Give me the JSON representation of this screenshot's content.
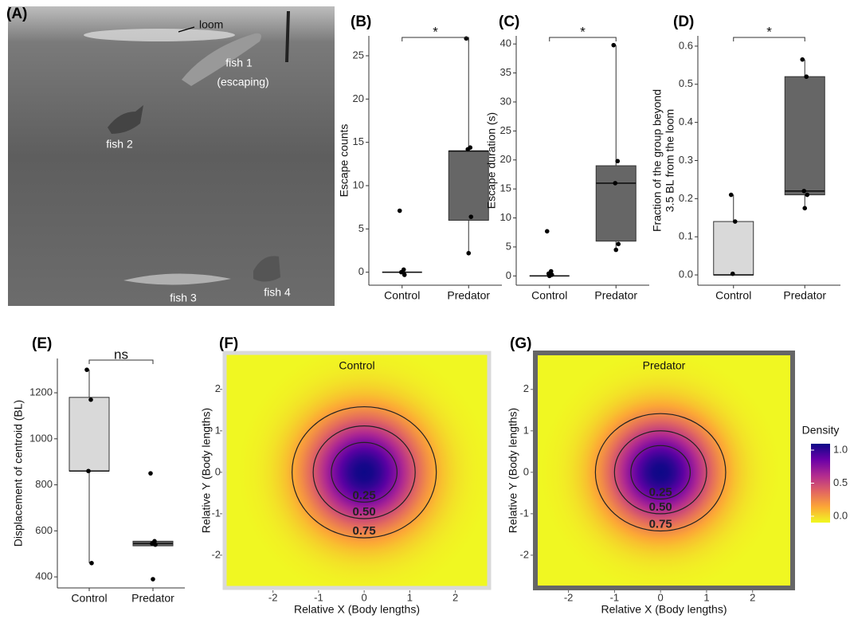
{
  "chart_data": [
    {
      "type": "image",
      "panel": "(A)",
      "annotations": [
        "loom",
        "fish 1",
        "(escaping)",
        "fish 2",
        "fish 3",
        "fish 4"
      ]
    },
    {
      "type": "box",
      "panel": "(B)",
      "y_label": "Escape counts",
      "categories": [
        "Control",
        "Predator"
      ],
      "colors": [
        "#d9d9d9",
        "#666666"
      ],
      "ylim": [
        -1.5,
        27.3
      ],
      "yticks": [
        0,
        5,
        10,
        15,
        20,
        25
      ],
      "significance": "*",
      "boxes": [
        {
          "whisker_low": 0,
          "q1": 0,
          "median": 0,
          "q3": 0,
          "whisker_high": 0,
          "points": [
            7.1,
            0.3,
            0,
            -0.3
          ]
        },
        {
          "whisker_low": 2.2,
          "q1": 6,
          "median": 14,
          "q3": 14,
          "whisker_high": 27,
          "points": [
            27,
            14.4,
            14.2,
            6.4,
            2.2
          ]
        }
      ]
    },
    {
      "type": "box",
      "panel": "(C)",
      "y_label": "Escape duration (s)",
      "categories": [
        "Control",
        "Predator"
      ],
      "colors": [
        "#d9d9d9",
        "#666666"
      ],
      "ylim": [
        -1.6,
        41.4
      ],
      "yticks": [
        0,
        5,
        10,
        15,
        20,
        25,
        30,
        35,
        40
      ],
      "significance": "*",
      "boxes": [
        {
          "whisker_low": 0,
          "q1": 0,
          "median": 0,
          "q3": 0,
          "whisker_high": 0,
          "points": [
            7.7,
            0.8,
            0.4,
            0.2,
            0
          ]
        },
        {
          "whisker_low": 4.5,
          "q1": 6,
          "median": 16,
          "q3": 19,
          "whisker_high": 39.8,
          "points": [
            39.8,
            19.8,
            16,
            5.5,
            4.5
          ]
        }
      ]
    },
    {
      "type": "box",
      "panel": "(D)",
      "y_label": [
        "Fraction of the group beyond",
        "3.5 BL from the loom"
      ],
      "categories": [
        "Control",
        "Predator"
      ],
      "colors": [
        "#d9d9d9",
        "#666666"
      ],
      "ylim": [
        -0.027,
        0.627
      ],
      "yticks": [
        {
          "value": 0,
          "label": "0.0"
        },
        0.1,
        0.2,
        0.3,
        0.4,
        0.5,
        0.6
      ],
      "significance": "*",
      "boxes": [
        {
          "whisker_low": 0,
          "q1": 0,
          "median": 0,
          "q3": 0.14,
          "whisker_high": 0.21,
          "points": [
            0.21,
            0.14,
            0.003
          ]
        },
        {
          "whisker_low": 0.175,
          "q1": 0.21,
          "median": 0.22,
          "q3": 0.52,
          "whisker_high": 0.565,
          "points": [
            0.565,
            0.52,
            0.22,
            0.21,
            0.175
          ]
        }
      ]
    },
    {
      "type": "box",
      "panel": "(E)",
      "y_label": "Displacement of centroid (BL)",
      "categories": [
        "Control",
        "Predator"
      ],
      "colors": [
        "#d9d9d9",
        "#666666"
      ],
      "ylim": [
        352,
        1349
      ],
      "yticks": [
        400,
        600,
        800,
        1000,
        1200
      ],
      "significance": "ns",
      "boxes": [
        {
          "whisker_low": 460,
          "q1": 860,
          "median": 860,
          "q3": 1180,
          "whisker_high": 1300,
          "points": [
            1300,
            1170,
            860,
            460
          ]
        },
        {
          "whisker_low": 535,
          "q1": 535,
          "median": 545,
          "q3": 555,
          "whisker_high": 555,
          "points": [
            850,
            555,
            545,
            540,
            390
          ]
        }
      ]
    },
    {
      "type": "heatmap",
      "panel": "(F)",
      "title": "Control",
      "x_label": "Relative X (Body lengths)",
      "y_label": "Relative Y (Body lengths)",
      "xlim": [
        -3.06,
        2.74
      ],
      "ylim": [
        -2.79,
        2.88
      ],
      "xticks": [
        -2,
        -1,
        0,
        1,
        2
      ],
      "yticks": [
        -2,
        -1,
        0,
        1,
        2
      ],
      "frame_color": "#d9d9d9",
      "colormap": [
        "#f0f921",
        "#fca636",
        "#e16462",
        "#b12a90",
        "#6a00a8",
        "#0d0887"
      ],
      "contour_levels": [
        {
          "value": 0.25,
          "label": "0.25"
        },
        {
          "value": 0.5,
          "label": "0.50"
        },
        {
          "value": 0.75,
          "label": "0.75"
        }
      ]
    },
    {
      "type": "heatmap",
      "panel": "(G)",
      "title": "Predator",
      "x_label": "Relative X (Body lengths)",
      "y_label": "Relative Y (Body lengths)",
      "xlim": [
        -2.72,
        2.87
      ],
      "ylim": [
        -2.79,
        2.88
      ],
      "xticks": [
        -2,
        -1,
        0,
        1,
        2
      ],
      "yticks": [
        -2,
        -1,
        0,
        1,
        2
      ],
      "frame_color": "#666666",
      "colormap": [
        "#f0f921",
        "#fca636",
        "#e16462",
        "#b12a90",
        "#6a00a8",
        "#0d0887"
      ],
      "contour_levels": [
        {
          "value": 0.25,
          "label": "0.25"
        },
        {
          "value": 0.5,
          "label": "0.50"
        },
        {
          "value": 0.75,
          "label": "0.75"
        }
      ],
      "legend": {
        "title": "Density",
        "ticks": [
          {
            "value": 0,
            "label": "0.0"
          },
          0.5,
          {
            "value": 1,
            "label": "1.0"
          }
        ]
      }
    }
  ]
}
